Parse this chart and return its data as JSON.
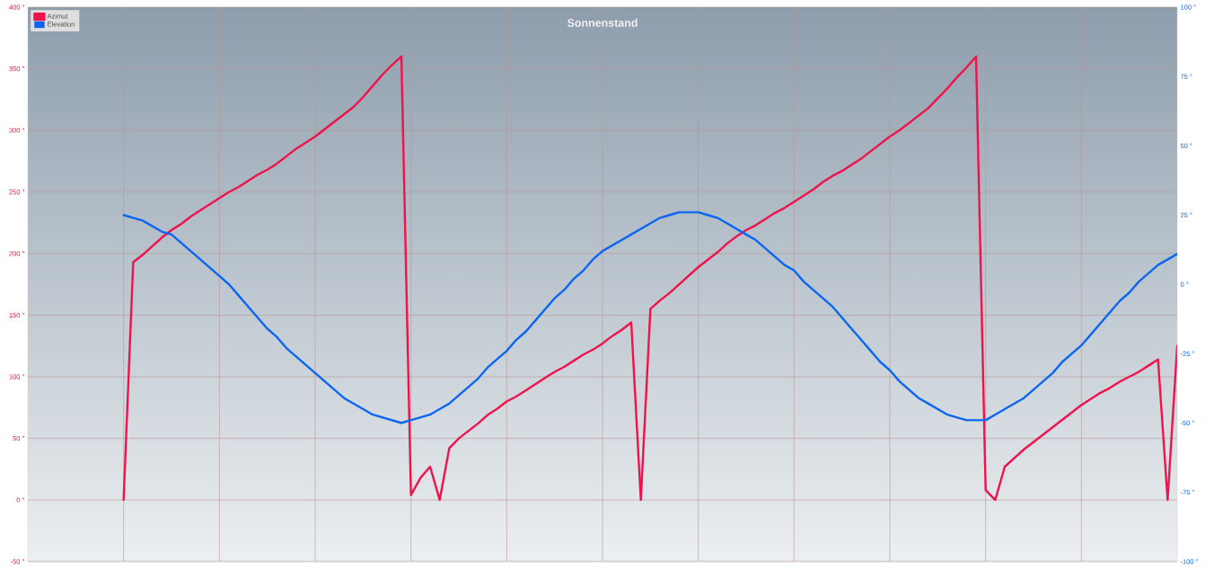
{
  "chart_data": {
    "type": "line",
    "title": "Sonnenstand",
    "legend": "top left",
    "grid": true,
    "categories": [
      null,
      null,
      null,
      null,
      null,
      null,
      null,
      null,
      null,
      null,
      null,
      null,
      null,
      null,
      null,
      null,
      null,
      null,
      null,
      null,
      null,
      null,
      null,
      null,
      null,
      null,
      null,
      null,
      null,
      null,
      null,
      null,
      null,
      null,
      null,
      null,
      null,
      null,
      null,
      null,
      null,
      null,
      null,
      null,
      null,
      null,
      null,
      null,
      null,
      null,
      null,
      null,
      null,
      null,
      null,
      null,
      null,
      null,
      null,
      null,
      null,
      null,
      null,
      null,
      null,
      null,
      null,
      null,
      null,
      null,
      null,
      null,
      null,
      null,
      null,
      null,
      null,
      null,
      null,
      null,
      null,
      null,
      null,
      null,
      null,
      null,
      null,
      null,
      null,
      null,
      null,
      null,
      null,
      null,
      null,
      null,
      null,
      null,
      null,
      null,
      null,
      null,
      null,
      null,
      null,
      null,
      null,
      null,
      null,
      null,
      null,
      null,
      null,
      null,
      null,
      null,
      null,
      null,
      null,
      null,
      null
    ],
    "ylim": [
      -50,
      400
    ],
    "yticks": [
      {
        "value": -50,
        "label": "-50 °"
      },
      {
        "value": 0,
        "label": "0 °"
      },
      {
        "value": 50,
        "label": "50 °"
      },
      {
        "value": 100,
        "label": "100 °"
      },
      {
        "value": 150,
        "label": "150 °"
      },
      {
        "value": 200,
        "label": "200 °"
      },
      {
        "value": 250,
        "label": "250 °"
      },
      {
        "value": 300,
        "label": "300 °"
      },
      {
        "value": 350,
        "label": "350 °"
      },
      {
        "value": 400,
        "label": "400 °"
      }
    ],
    "y2lim": [
      -100,
      100
    ],
    "y2ticks": [
      {
        "value": -100,
        "label": "-100 °"
      },
      {
        "value": -75,
        "label": "-75 °"
      },
      {
        "value": -50,
        "label": "-50 °"
      },
      {
        "value": -25,
        "label": "-25 °"
      },
      {
        "value": 0,
        "label": "0 °"
      },
      {
        "value": 25,
        "label": "25 °"
      },
      {
        "value": 50,
        "label": "50 °"
      },
      {
        "value": 75,
        "label": "75 °"
      },
      {
        "value": 100,
        "label": "100 °"
      }
    ],
    "series": [
      {
        "name": "Azimut",
        "color": "#f0124b",
        "values": [
          null,
          null,
          null,
          null,
          null,
          null,
          null,
          null,
          null,
          null,
          0,
          193,
          199,
          206,
          213,
          219,
          224,
          230,
          235,
          240,
          245,
          250,
          254,
          259,
          264,
          268,
          273,
          279,
          285,
          290,
          295,
          301,
          307,
          313,
          319,
          327,
          336,
          345,
          353,
          360,
          4,
          18,
          27,
          0,
          42,
          50,
          56,
          62,
          69,
          74,
          80,
          84,
          89,
          94,
          99,
          104,
          108,
          113,
          118,
          122,
          127,
          133,
          138,
          144,
          0,
          155,
          162,
          168,
          175,
          182,
          189,
          195,
          201,
          208,
          214,
          219,
          223,
          228,
          233,
          237,
          242,
          247,
          252,
          258,
          263,
          267,
          272,
          277,
          283,
          289,
          295,
          300,
          306,
          312,
          318,
          326,
          334,
          343,
          351,
          360,
          8,
          0,
          27,
          34,
          41,
          47,
          53,
          59,
          65,
          71,
          77,
          82,
          87,
          91,
          96,
          100,
          104,
          109,
          114,
          0,
          125
        ]
      },
      {
        "name": "Elevation",
        "color": "#0a66f2",
        "axis": "y2",
        "values": [
          null,
          null,
          null,
          null,
          null,
          null,
          null,
          null,
          null,
          null,
          25,
          24,
          23,
          21,
          19,
          18,
          15,
          12,
          9,
          6,
          3,
          0,
          -4,
          -8,
          -12,
          -16,
          -19,
          -23,
          -26,
          -29,
          -32,
          -35,
          -38,
          -41,
          -43,
          -45,
          -47,
          -48,
          -49,
          -50,
          -49,
          -48,
          -47,
          -45,
          -43,
          -40,
          -37,
          -34,
          -30,
          -27,
          -24,
          -20,
          -17,
          -13,
          -9,
          -5,
          -2,
          2,
          5,
          9,
          12,
          14,
          16,
          18,
          20,
          22,
          24,
          25,
          26,
          26,
          26,
          25,
          24,
          22,
          20,
          18,
          16,
          13,
          10,
          7,
          5,
          1,
          -2,
          -5,
          -8,
          -12,
          -16,
          -20,
          -24,
          -28,
          -31,
          -35,
          -38,
          -41,
          -43,
          -45,
          -47,
          -48,
          -49,
          -49,
          -49,
          -47,
          -45,
          -43,
          -41,
          -38,
          -35,
          -32,
          -28,
          -25,
          -22,
          -18,
          -14,
          -10,
          -6,
          -3,
          1,
          4,
          7,
          9,
          11
        ]
      }
    ]
  }
}
